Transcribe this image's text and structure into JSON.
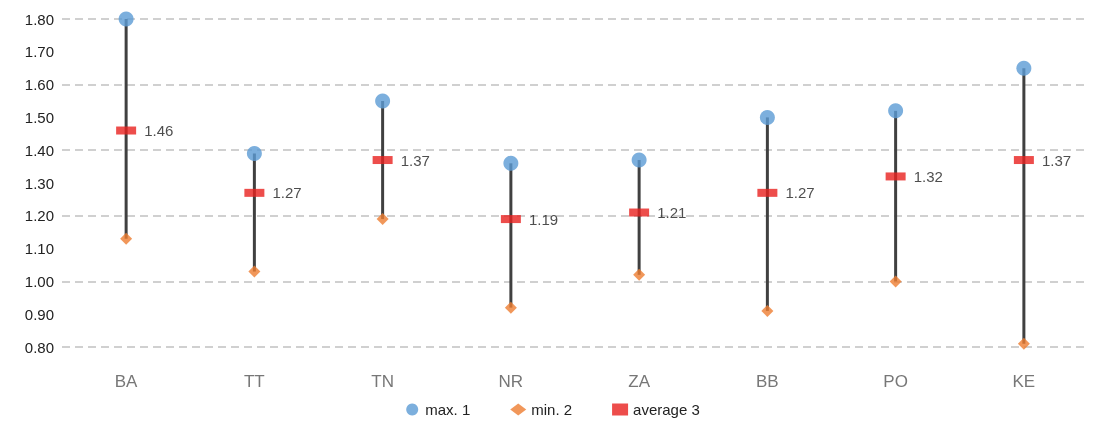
{
  "chart_data": {
    "type": "scatter",
    "categories": [
      "BA",
      "TT",
      "TN",
      "NR",
      "ZA",
      "BB",
      "PO",
      "KE"
    ],
    "series": [
      {
        "name": "max. 1",
        "color": "#5b9bd5",
        "marker": "circle",
        "values": [
          1.8,
          1.39,
          1.55,
          1.36,
          1.37,
          1.5,
          1.52,
          1.65
        ]
      },
      {
        "name": "min. 2",
        "color": "#ed7d31",
        "marker": "diamond",
        "values": [
          1.13,
          1.03,
          1.19,
          0.92,
          1.02,
          0.91,
          1.0,
          0.81
        ]
      },
      {
        "name": "average 3",
        "color": "#e8201e",
        "marker": "square",
        "values": [
          1.46,
          1.27,
          1.37,
          1.19,
          1.21,
          1.27,
          1.32,
          1.37
        ],
        "value_labels": [
          "1.46",
          "1.27",
          "1.37",
          "1.19",
          "1.21",
          "1.27",
          "1.32",
          "1.37"
        ]
      }
    ],
    "ylim": [
      0.8,
      1.8
    ],
    "yticks": [
      {
        "value": 0.8,
        "label": "0.80"
      },
      {
        "value": 0.9,
        "label": "0.90"
      },
      {
        "value": 1.0,
        "label": "1.00"
      },
      {
        "value": 1.1,
        "label": "1.10"
      },
      {
        "value": 1.2,
        "label": "1.20"
      },
      {
        "value": 1.3,
        "label": "1.30"
      },
      {
        "value": 1.4,
        "label": "1.40"
      },
      {
        "value": 1.5,
        "label": "1.50"
      },
      {
        "value": 1.6,
        "label": "1.60"
      },
      {
        "value": 1.7,
        "label": "1.70"
      },
      {
        "value": 1.8,
        "label": "1.80"
      }
    ],
    "grid": "y",
    "legend": "bottom"
  }
}
